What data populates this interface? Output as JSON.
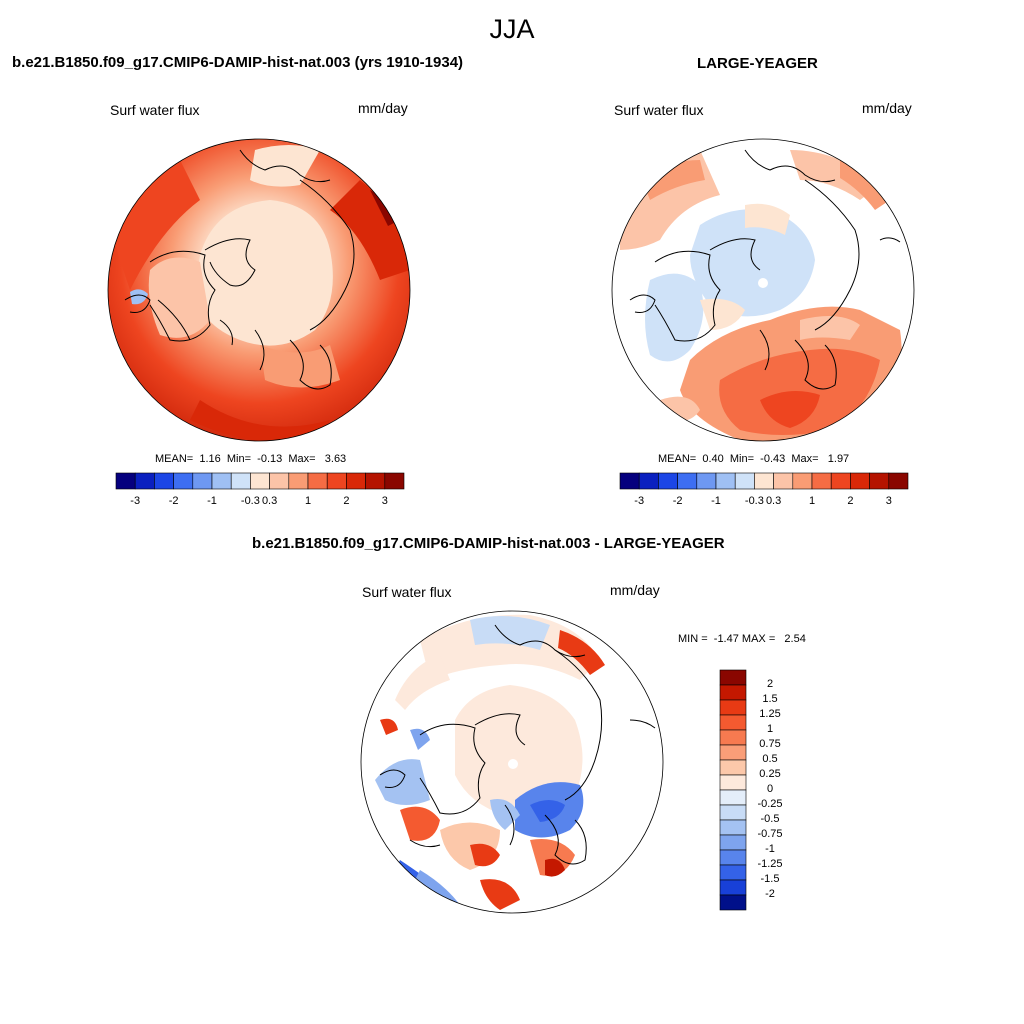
{
  "figure": {
    "title": "JJA"
  },
  "panels": [
    {
      "title": "b.e21.B1850.f09_g17.CMIP6-DAMIP-hist-nat.003 (yrs 1910-1934)",
      "variable": "Surf water flux",
      "units": "mm/day",
      "stats": {
        "mean_label": "MEAN=",
        "mean": "1.16",
        "min_label": "Min=",
        "min": "-0.13",
        "max_label": "Max=",
        "max": "3.63"
      },
      "colorbar": {
        "labels": [
          "-3",
          "-2",
          "-1",
          "-0.3",
          "0.3",
          "1",
          "2",
          "3"
        ],
        "colors": [
          "#05007e",
          "#0a20c0",
          "#1c46e6",
          "#3d6ef2",
          "#6e98f2",
          "#9fc0f4",
          "#cfe2f8",
          "#fde5d2",
          "#fcc4a8",
          "#f99c74",
          "#f56c44",
          "#ee4520",
          "#d92808",
          "#b51300",
          "#8a0600"
        ]
      }
    },
    {
      "title": "LARGE-YEAGER",
      "variable": "Surf water flux",
      "units": "mm/day",
      "stats": {
        "mean_label": "MEAN=",
        "mean": "0.40",
        "min_label": "Min=",
        "min": "-0.43",
        "max_label": "Max=",
        "max": "1.97"
      },
      "colorbar": {
        "labels": [
          "-3",
          "-2",
          "-1",
          "-0.3",
          "0.3",
          "1",
          "2",
          "3"
        ],
        "colors": [
          "#05007e",
          "#0a20c0",
          "#1c46e6",
          "#3d6ef2",
          "#6e98f2",
          "#9fc0f4",
          "#cfe2f8",
          "#fde5d2",
          "#fcc4a8",
          "#f99c74",
          "#f56c44",
          "#ee4520",
          "#d92808",
          "#b51300",
          "#8a0600"
        ]
      }
    },
    {
      "title": "b.e21.B1850.f09_g17.CMIP6-DAMIP-hist-nat.003 - LARGE-YEAGER",
      "variable": "Surf water flux",
      "units": "mm/day",
      "stats": {
        "min_label": "MIN =",
        "min": "-1.47",
        "max_label": "MAX =",
        "max": "2.54"
      },
      "colorbar": {
        "labels": [
          "2",
          "1.5",
          "1.25",
          "1",
          "0.75",
          "0.5",
          "0.25",
          "0",
          "-0.25",
          "-0.5",
          "-0.75",
          "-1",
          "-1.25",
          "-1.5",
          "-2"
        ],
        "colors": [
          "#8a0600",
          "#c41800",
          "#e83a14",
          "#f45a30",
          "#f77a50",
          "#fa9e78",
          "#fcc8aa",
          "#fde9dc",
          "#e4eefa",
          "#c8dcf6",
          "#a4c2f2",
          "#7ea4ee",
          "#5884ec",
          "#3462e8",
          "#1840d8",
          "#00108a"
        ]
      }
    }
  ]
}
